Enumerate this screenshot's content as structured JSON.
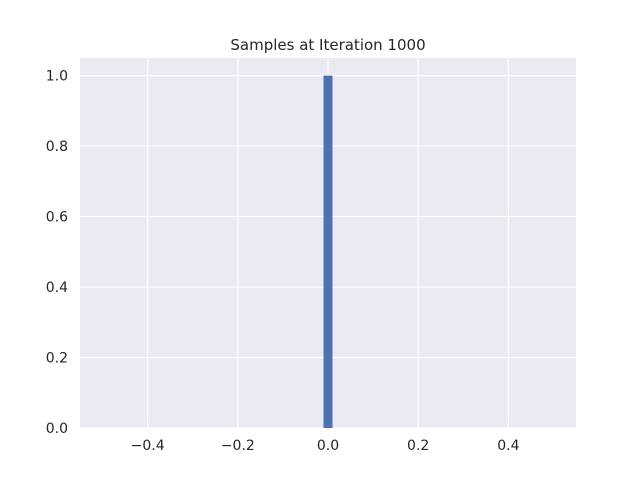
{
  "chart_data": {
    "type": "bar",
    "title": "Samples at Iteration 1000",
    "xlabel": "",
    "ylabel": "",
    "xlim": [
      -0.55,
      0.55
    ],
    "ylim": [
      0,
      1.0
    ],
    "x_ticks": [
      -0.4,
      -0.2,
      0.0,
      0.2,
      0.4
    ],
    "x_tick_labels": [
      "−0.4",
      "−0.2",
      "0.0",
      "0.2",
      "0.4"
    ],
    "y_ticks": [
      0.0,
      0.2,
      0.4,
      0.6,
      0.8,
      1.0
    ],
    "y_tick_labels": [
      "0.0",
      "0.2",
      "0.4",
      "0.6",
      "0.8",
      "1.0"
    ],
    "bars": [
      {
        "x_start": -0.01,
        "x_end": 0.01,
        "value": 1.0
      }
    ],
    "grid": true,
    "style": "seaborn-darkgrid"
  },
  "colors": {
    "plot_background": "#eaeaf2",
    "grid": "#ffffff",
    "bar": "#4c72b0",
    "text": "#262626"
  }
}
